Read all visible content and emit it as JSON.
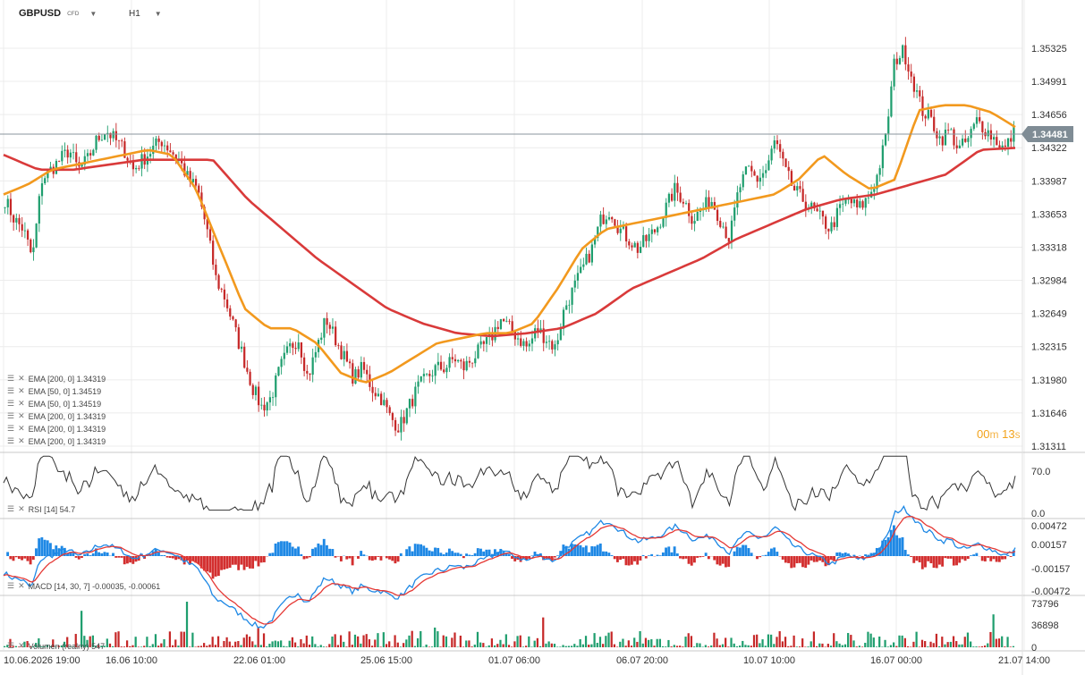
{
  "header": {
    "symbol": "GBPUSD",
    "symbol_type": "CFD",
    "timeframe": "H1"
  },
  "current_price_label": "1.34481",
  "timer": {
    "minutes": "00",
    "seconds": "13",
    "m": "m",
    "s": "s"
  },
  "indicators": [
    "EMA [200, 0] 1.34319",
    "EMA [50, 0] 1.34519",
    "EMA [50, 0] 1.34519",
    "EMA [200, 0] 1.34319",
    "EMA [200, 0] 1.34319",
    "EMA [200, 0] 1.34319"
  ],
  "rsi_label": "RSI [14] 54.7",
  "macd_label": "MACD [14, 30, 7] -0.00035, -0.00061",
  "volume_label": "Volumen (realny) 547",
  "colors": {
    "up": "#1f9e6e",
    "down": "#c62828",
    "ema_fast": "#f2991e",
    "ema_slow": "#d93a3a",
    "macd_line": "#1e88e5",
    "signal_line": "#e53935",
    "hist_pos": "#1e88e5",
    "hist_neg": "#d32f2f",
    "price_tag": "#7f8c95",
    "grid": "#ececec",
    "axis_text": "#333333"
  },
  "chart_data": {
    "type": "candlestick",
    "price_axis_ticks": [
      "1.35325",
      "1.34991",
      "1.34656",
      "1.34322",
      "1.33987",
      "1.33653",
      "1.33318",
      "1.32984",
      "1.32649",
      "1.32315",
      "1.31980",
      "1.31646",
      "1.31311"
    ],
    "rsi_axis_ticks": [
      "70.0",
      "0.0"
    ],
    "macd_axis_ticks": [
      "0.00472",
      "0.00157",
      "-0.00157",
      "-0.00472"
    ],
    "volume_axis_ticks": [
      "73796",
      "36898",
      "0"
    ],
    "x_tick_labels": [
      "10.06.2026 19:00",
      "16.06 10:00",
      "22.06 01:00",
      "25.06 15:00",
      "01.07 06:00",
      "06.07 20:00",
      "10.07 10:00",
      "16.07 00:00",
      "21.07 14:00"
    ],
    "price_range": [
      1.31311,
      1.35325
    ],
    "close_series": [
      1.338,
      1.336,
      1.335,
      1.332,
      1.34,
      1.341,
      1.342,
      1.343,
      1.341,
      1.342,
      1.344,
      1.345,
      1.344,
      1.343,
      1.341,
      1.342,
      1.343,
      1.344,
      1.343,
      1.342,
      1.34,
      1.339,
      1.335,
      1.33,
      1.328,
      1.325,
      1.322,
      1.319,
      1.317,
      1.318,
      1.321,
      1.323,
      1.324,
      1.32,
      1.323,
      1.326,
      1.324,
      1.322,
      1.32,
      1.321,
      1.319,
      1.318,
      1.316,
      1.315,
      1.317,
      1.319,
      1.32,
      1.321,
      1.321,
      1.322,
      1.321,
      1.322,
      1.323,
      1.324,
      1.326,
      1.325,
      1.324,
      1.323,
      1.325,
      1.324,
      1.323,
      1.327,
      1.329,
      1.331,
      1.333,
      1.336,
      1.337,
      1.335,
      1.334,
      1.333,
      1.334,
      1.335,
      1.337,
      1.339,
      1.338,
      1.336,
      1.337,
      1.338,
      1.336,
      1.334,
      1.339,
      1.341,
      1.34,
      1.341,
      1.344,
      1.341,
      1.339,
      1.338,
      1.337,
      1.336,
      1.335,
      1.337,
      1.338,
      1.337,
      1.338,
      1.34,
      1.344,
      1.352,
      1.353,
      1.35,
      1.347,
      1.346,
      1.344,
      1.345,
      1.343,
      1.344,
      1.346,
      1.345,
      1.344,
      1.343,
      1.3448
    ],
    "ema_fast_series": [
      1.3385,
      1.3395,
      1.341,
      1.3415,
      1.342,
      1.3425,
      1.343,
      1.3425,
      1.339,
      1.333,
      1.327,
      1.325,
      1.325,
      1.3235,
      1.3205,
      1.3195,
      1.3205,
      1.322,
      1.3235,
      1.324,
      1.3245,
      1.3245,
      1.3255,
      1.329,
      1.333,
      1.335,
      1.3355,
      1.336,
      1.3365,
      1.337,
      1.3375,
      1.338,
      1.3385,
      1.34,
      1.3425,
      1.3405,
      1.339,
      1.34,
      1.347,
      1.3475,
      1.3475,
      1.3468,
      1.3453
    ],
    "ema_slow_series": [
      1.3425,
      1.341,
      1.341,
      1.3415,
      1.342,
      1.342,
      1.342,
      1.338,
      1.335,
      1.332,
      1.3295,
      1.327,
      1.3255,
      1.3245,
      1.3242,
      1.3245,
      1.325,
      1.3265,
      1.329,
      1.3305,
      1.332,
      1.334,
      1.3355,
      1.337,
      1.338,
      1.3385,
      1.3395,
      1.3405,
      1.343,
      1.3432
    ]
  }
}
